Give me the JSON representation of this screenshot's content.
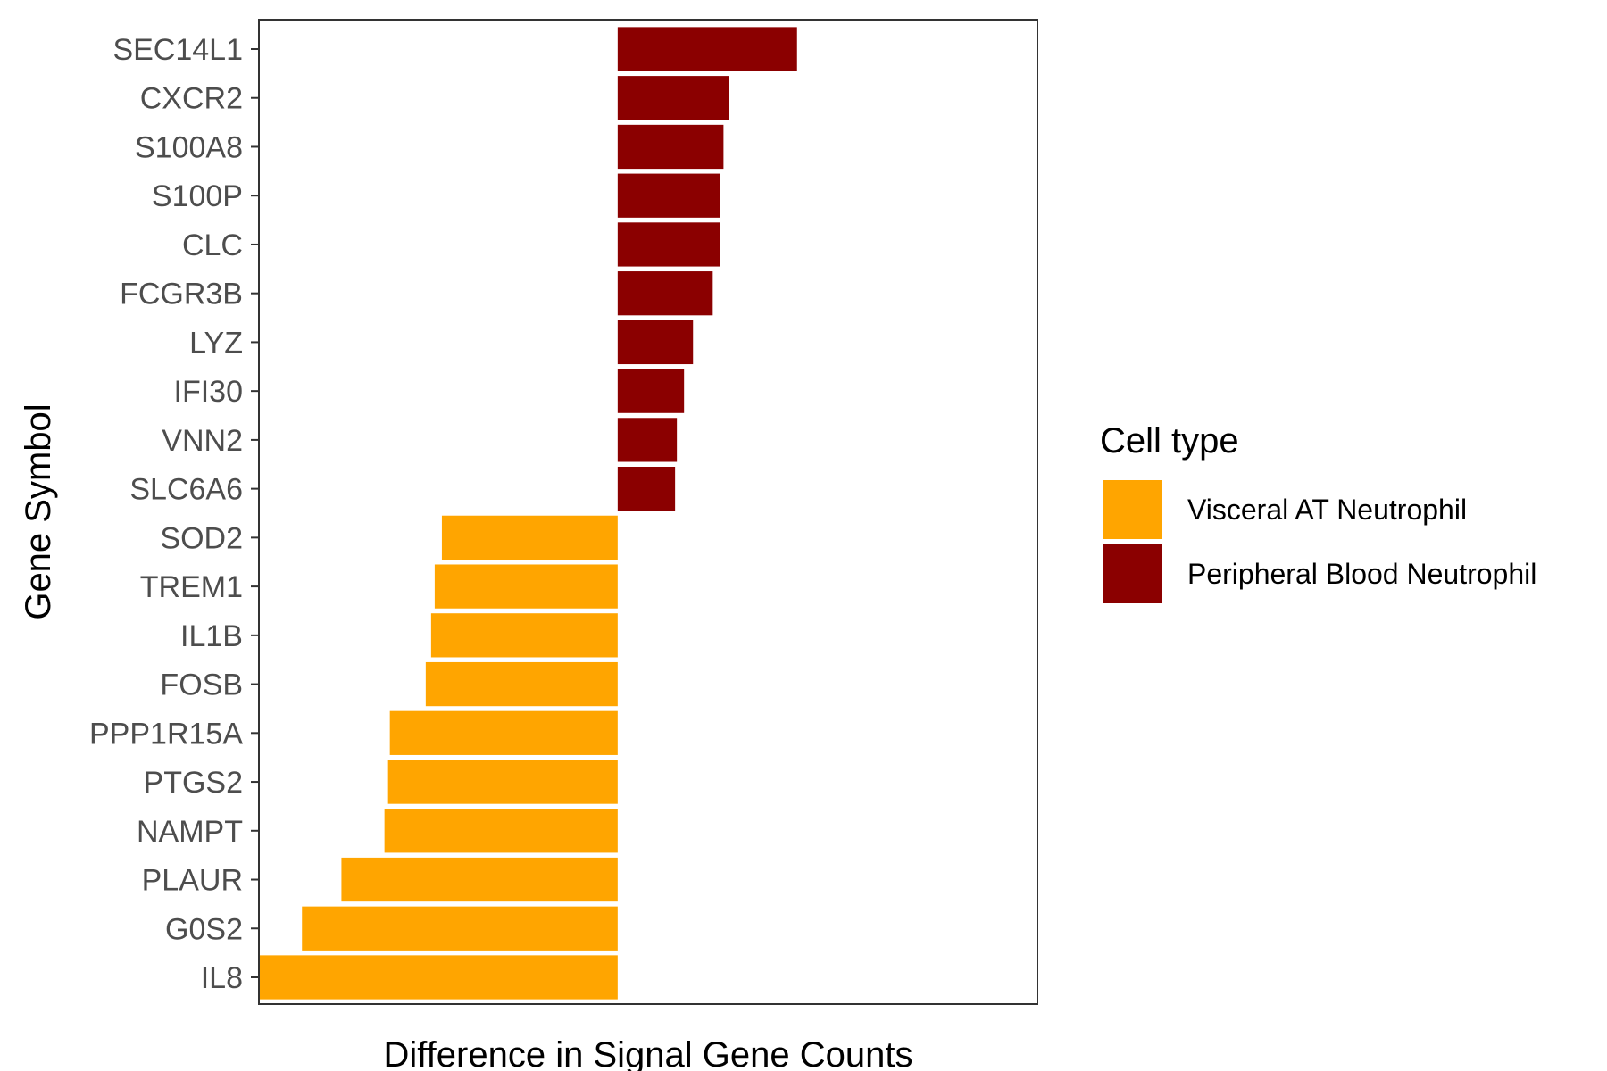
{
  "chart_data": {
    "type": "bar",
    "orientation": "horizontal",
    "xlabel": "Difference in Signal Gene Counts",
    "ylabel": "Gene Symbol",
    "x_tick_labels_shown": false,
    "grid": false,
    "xlim": [
      -1.0,
      1.17
    ],
    "categories": [
      "SEC14L1",
      "CXCR2",
      "S100A8",
      "S100P",
      "CLC",
      "FCGR3B",
      "LYZ",
      "IFI30",
      "VNN2",
      "SLC6A6",
      "SOD2",
      "TREM1",
      "IL1B",
      "FOSB",
      "PPP1R15A",
      "PTGS2",
      "NAMPT",
      "PLAUR",
      "G0S2",
      "IL8"
    ],
    "values": [
      0.5,
      0.31,
      0.295,
      0.285,
      0.285,
      0.265,
      0.21,
      0.185,
      0.165,
      0.16,
      -0.49,
      -0.51,
      -0.52,
      -0.535,
      -0.635,
      -0.64,
      -0.65,
      -0.77,
      -0.88,
      -1.0
    ],
    "groups": [
      "Peripheral Blood Neutrophil",
      "Peripheral Blood Neutrophil",
      "Peripheral Blood Neutrophil",
      "Peripheral Blood Neutrophil",
      "Peripheral Blood Neutrophil",
      "Peripheral Blood Neutrophil",
      "Peripheral Blood Neutrophil",
      "Peripheral Blood Neutrophil",
      "Peripheral Blood Neutrophil",
      "Peripheral Blood Neutrophil",
      "Visceral AT Neutrophil",
      "Visceral AT Neutrophil",
      "Visceral AT Neutrophil",
      "Visceral AT Neutrophil",
      "Visceral AT Neutrophil",
      "Visceral AT Neutrophil",
      "Visceral AT Neutrophil",
      "Visceral AT Neutrophil",
      "Visceral AT Neutrophil",
      "Visceral AT Neutrophil"
    ],
    "legend": {
      "title": "Cell type",
      "position": "right",
      "entries": [
        {
          "label": "Visceral AT Neutrophil",
          "color": "#FFA500"
        },
        {
          "label": "Peripheral Blood Neutrophil",
          "color": "#8B0000"
        }
      ]
    }
  }
}
